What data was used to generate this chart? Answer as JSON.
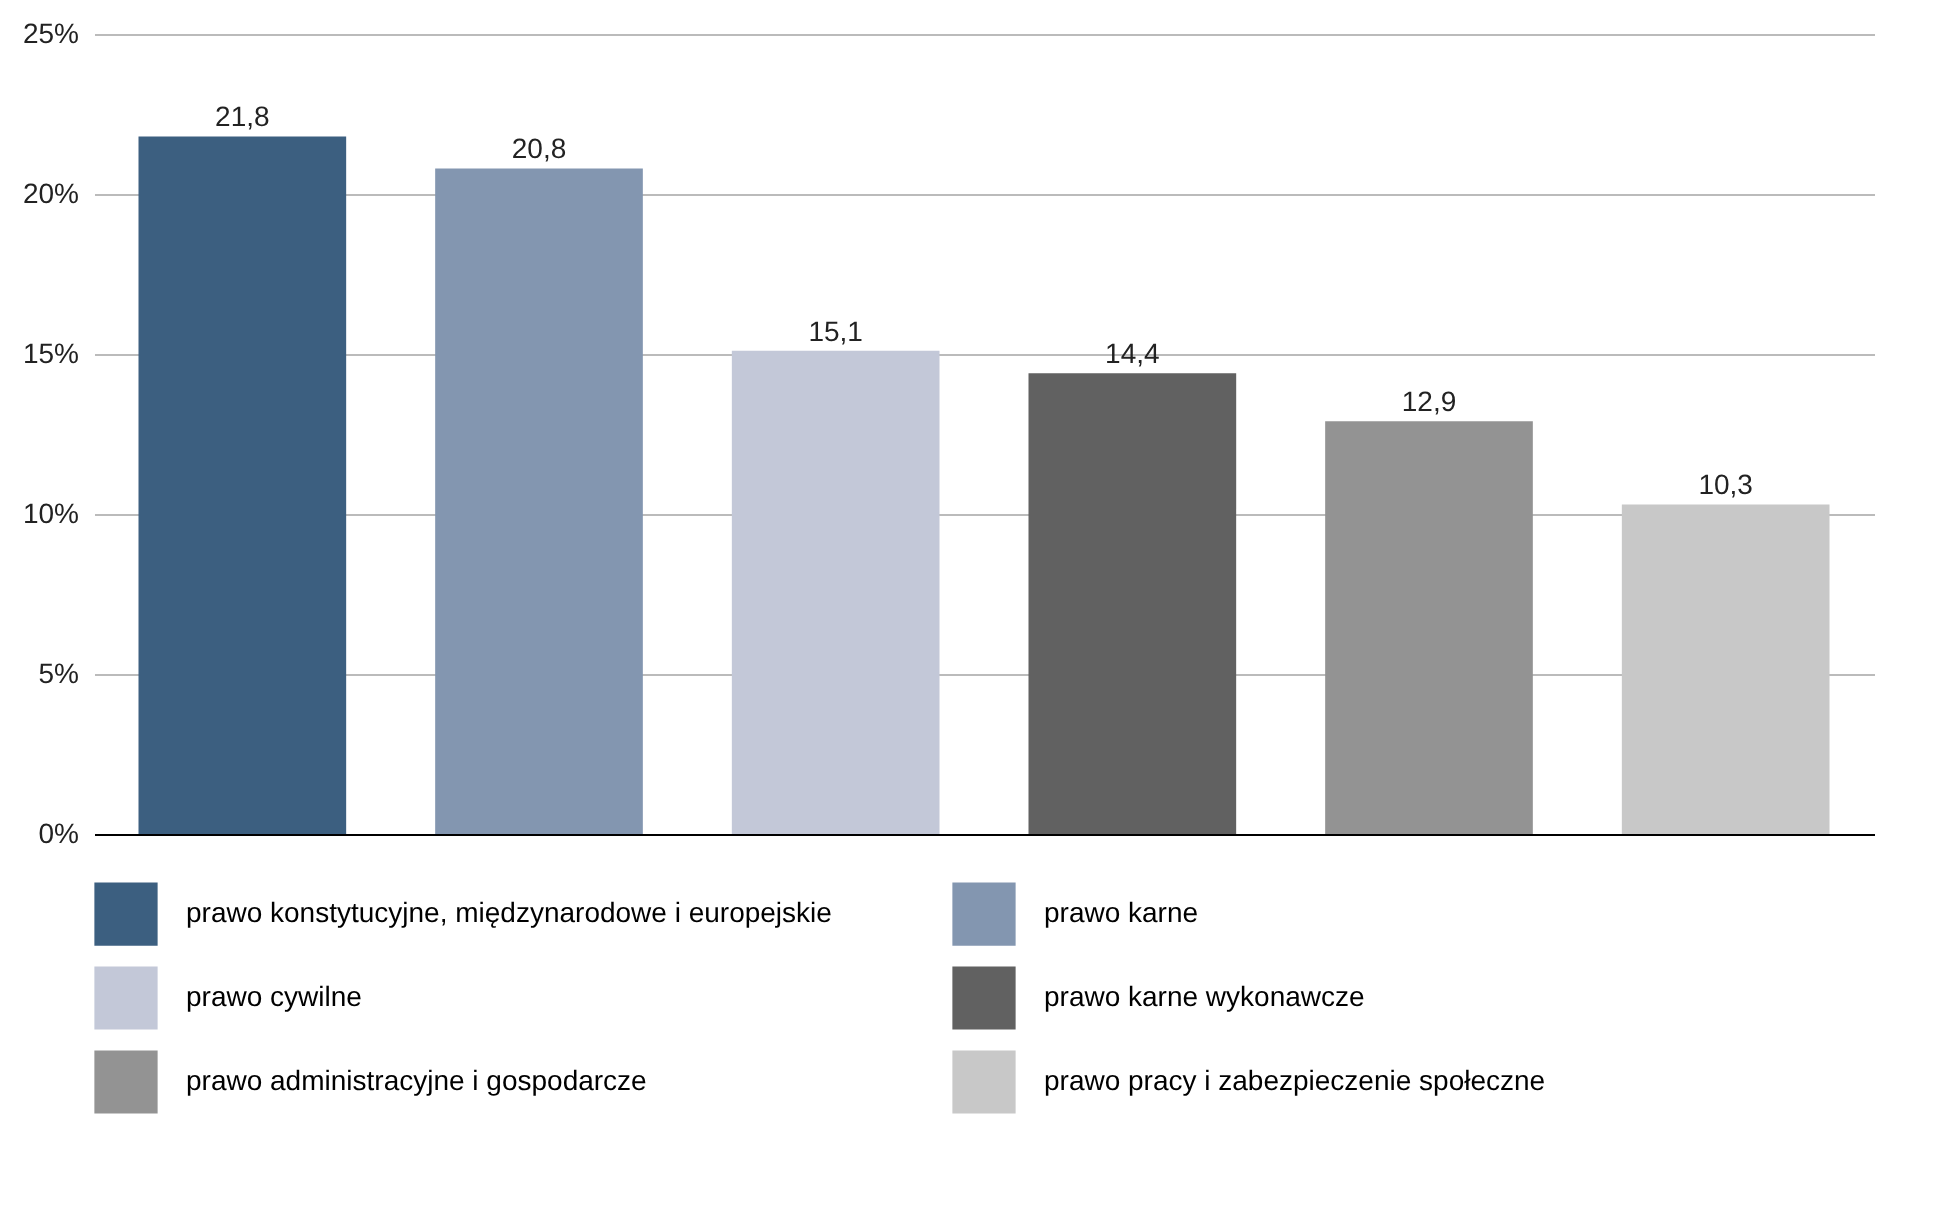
{
  "chart_data": {
    "type": "bar",
    "categories": [
      null,
      null,
      null,
      null,
      null,
      null
    ],
    "series": [
      {
        "name": "prawo konstytucyjne, międzynarodowe i europejskie",
        "color": "#3c5f80",
        "values": [
          21.8,
          null,
          null,
          null,
          null,
          null
        ],
        "value_labels": [
          "21,8",
          null,
          null,
          null,
          null,
          null
        ]
      },
      {
        "name": "prawo karne",
        "color": "#8396b0",
        "values": [
          null,
          20.8,
          null,
          null,
          null,
          null
        ],
        "value_labels": [
          null,
          "20,8",
          null,
          null,
          null,
          null
        ]
      },
      {
        "name": "prawo cywilne",
        "color": "#c3c8d8",
        "values": [
          null,
          null,
          15.1,
          null,
          null,
          null
        ],
        "value_labels": [
          null,
          null,
          "15,1",
          null,
          null,
          null
        ]
      },
      {
        "name": "prawo karne wykonawcze",
        "color": "#616161",
        "values": [
          null,
          null,
          null,
          14.4,
          null,
          null
        ],
        "value_labels": [
          null,
          null,
          null,
          "14,4",
          null,
          null
        ]
      },
      {
        "name": "prawo administracyjne i gospodarcze",
        "color": "#939393",
        "values": [
          null,
          null,
          null,
          null,
          12.9,
          null
        ],
        "value_labels": [
          null,
          null,
          null,
          null,
          "12,9",
          null
        ]
      },
      {
        "name": "prawo pracy i zabezpieczenie społeczne",
        "color": "#c8c8c8",
        "values": [
          null,
          null,
          null,
          null,
          null,
          10.3
        ],
        "value_labels": [
          null,
          null,
          null,
          null,
          null,
          "10,3"
        ]
      }
    ],
    "ylim": [
      0,
      25
    ],
    "yticks": [
      {
        "value": 0,
        "label": "0%"
      },
      {
        "value": 5,
        "label": "5%"
      },
      {
        "value": 10,
        "label": "10%"
      },
      {
        "value": 15,
        "label": "15%"
      },
      {
        "value": 20,
        "label": "20%"
      },
      {
        "value": 25,
        "label": "25%"
      }
    ],
    "grid": "y",
    "legend": "bottom",
    "tick_labels": "y"
  }
}
